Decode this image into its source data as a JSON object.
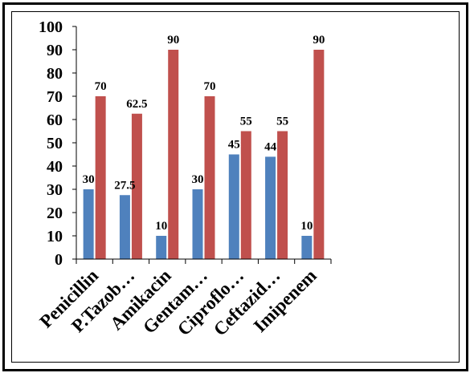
{
  "chart_data": {
    "type": "bar",
    "categories": [
      "Penicillin",
      "P.Tazob…",
      "Amikacin",
      "Gentam…",
      "Ciproflo…",
      "Ceftazid…",
      "Imipenem"
    ],
    "series": [
      {
        "values": [
          30,
          27.5,
          10,
          30,
          45,
          44,
          10
        ],
        "color": "#4F81BD"
      },
      {
        "values": [
          70,
          62.5,
          90,
          70,
          55,
          55,
          90
        ],
        "color": "#C0504D"
      }
    ],
    "data_labels": [
      [
        "30",
        "27.5",
        "10",
        "30",
        "45",
        "44",
        "10"
      ],
      [
        "70",
        "62.5",
        "90",
        "70",
        "55",
        "55",
        "90"
      ]
    ],
    "title": "",
    "xlabel": "",
    "ylabel": "",
    "ylim": [
      0,
      100
    ],
    "yticks": [
      0,
      10,
      20,
      30,
      40,
      50,
      60,
      70,
      80,
      90,
      100
    ],
    "grid": false,
    "legend": "none"
  }
}
